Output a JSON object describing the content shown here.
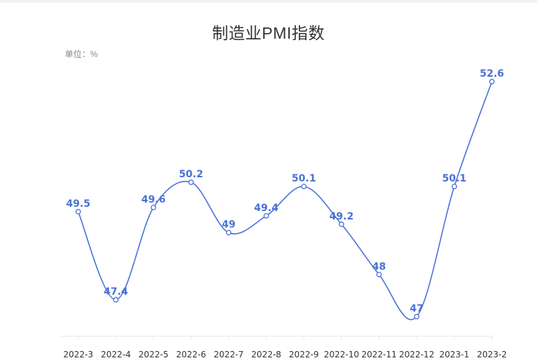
{
  "title": "制造业PMI指数",
  "unit_label": "单位：%",
  "chart_data": {
    "type": "line",
    "title": "制造业PMI指数",
    "unit": "单位：%",
    "categories": [
      "2022-3",
      "2022-4",
      "2022-5",
      "2022-6",
      "2022-7",
      "2022-8",
      "2022-9",
      "2022-10",
      "2022-11",
      "2022-12",
      "2023-1",
      "2023-2"
    ],
    "series": [
      {
        "values": [
          49.5,
          47.4,
          49.6,
          50.2,
          49,
          49.4,
          50.1,
          49.2,
          48,
          47,
          50.1,
          52.6
        ]
      }
    ],
    "ylim": [
      47,
      52.6
    ],
    "grid": false,
    "smooth": true,
    "line_color": "#4a72d6",
    "label_color": "#4a72d6"
  }
}
